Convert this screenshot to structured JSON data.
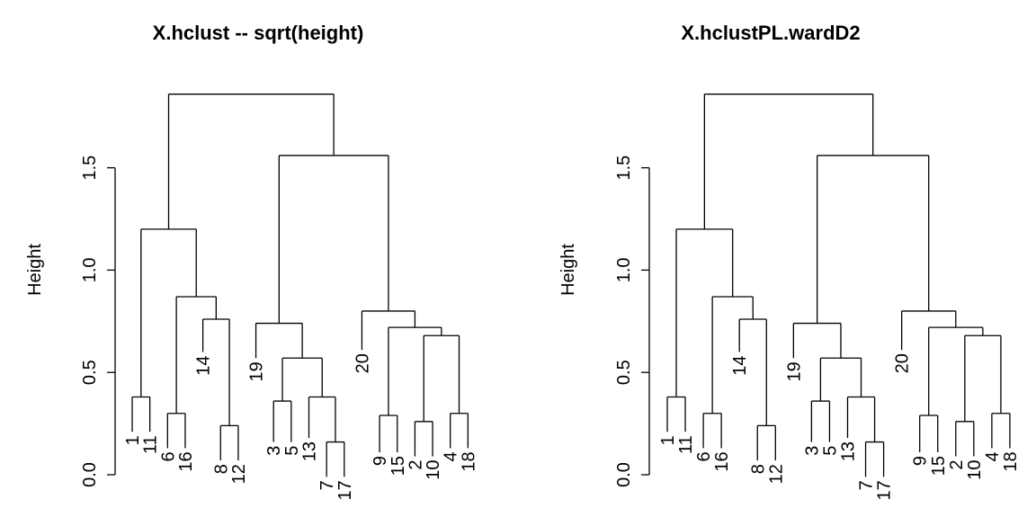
{
  "chart_data": [
    {
      "type": "dendrogram",
      "title": "X.hclust -- sqrt(height)",
      "ylabel": "Height",
      "xlabel": "",
      "ylim": [
        0,
        1.86
      ],
      "yticks": [
        "0.0",
        "0.5",
        "1.0",
        "1.5"
      ],
      "ytick_values": [
        0.0,
        0.5,
        1.0,
        1.5
      ],
      "leaves": [
        {
          "label": "1",
          "y": 0.21
        },
        {
          "label": "11",
          "y": 0.21
        },
        {
          "label": "6",
          "y": 0.13
        },
        {
          "label": "16",
          "y": 0.13
        },
        {
          "label": "14",
          "y": 0.6
        },
        {
          "label": "8",
          "y": 0.07
        },
        {
          "label": "12",
          "y": 0.07
        },
        {
          "label": "19",
          "y": 0.57
        },
        {
          "label": "3",
          "y": 0.16
        },
        {
          "label": "5",
          "y": 0.16
        },
        {
          "label": "13",
          "y": 0.18
        },
        {
          "label": "7",
          "y": -0.01
        },
        {
          "label": "17",
          "y": -0.01
        },
        {
          "label": "20",
          "y": 0.61
        },
        {
          "label": "9",
          "y": 0.11
        },
        {
          "label": "15",
          "y": 0.11
        },
        {
          "label": "2",
          "y": 0.09
        },
        {
          "label": "10",
          "y": 0.09
        },
        {
          "label": "4",
          "y": 0.13
        },
        {
          "label": "18",
          "y": 0.13
        }
      ],
      "merges": [
        {
          "a": "L1",
          "b": "L11",
          "h": 0.38
        },
        {
          "a": "L6",
          "b": "L16",
          "h": 0.3
        },
        {
          "a": "L8",
          "b": "L12",
          "h": 0.24
        },
        {
          "a": "L14",
          "b": "M3",
          "h": 0.76
        },
        {
          "a": "M2",
          "b": "M4",
          "h": 0.87
        },
        {
          "a": "M1",
          "b": "M5",
          "h": 1.2
        },
        {
          "a": "L3",
          "b": "L5",
          "h": 0.36
        },
        {
          "a": "L7",
          "b": "L17",
          "h": 0.16
        },
        {
          "a": "L13",
          "b": "M8",
          "h": 0.38
        },
        {
          "a": "M7",
          "b": "M9",
          "h": 0.57
        },
        {
          "a": "L19",
          "b": "M10",
          "h": 0.74
        },
        {
          "a": "L9",
          "b": "L15",
          "h": 0.29
        },
        {
          "a": "L2",
          "b": "L10",
          "h": 0.26
        },
        {
          "a": "L4",
          "b": "L18",
          "h": 0.3
        },
        {
          "a": "M13",
          "b": "M14",
          "h": 0.68
        },
        {
          "a": "M12",
          "b": "M15",
          "h": 0.72
        },
        {
          "a": "L20",
          "b": "M16",
          "h": 0.8
        },
        {
          "a": "M11",
          "b": "M17",
          "h": 1.56
        },
        {
          "a": "M6",
          "b": "M18",
          "h": 1.86
        }
      ]
    },
    {
      "type": "dendrogram",
      "title": "X.hclustPL.wardD2",
      "ylabel": "Height",
      "xlabel": "",
      "ylim": [
        0,
        1.86
      ],
      "yticks": [
        "0.0",
        "0.5",
        "1.0",
        "1.5"
      ],
      "ytick_values": [
        0.0,
        0.5,
        1.0,
        1.5
      ],
      "leaves": [
        {
          "label": "1",
          "y": 0.21
        },
        {
          "label": "11",
          "y": 0.21
        },
        {
          "label": "6",
          "y": 0.13
        },
        {
          "label": "16",
          "y": 0.13
        },
        {
          "label": "14",
          "y": 0.6
        },
        {
          "label": "8",
          "y": 0.07
        },
        {
          "label": "12",
          "y": 0.07
        },
        {
          "label": "19",
          "y": 0.57
        },
        {
          "label": "3",
          "y": 0.16
        },
        {
          "label": "5",
          "y": 0.16
        },
        {
          "label": "13",
          "y": 0.18
        },
        {
          "label": "7",
          "y": -0.01
        },
        {
          "label": "17",
          "y": -0.01
        },
        {
          "label": "20",
          "y": 0.61
        },
        {
          "label": "9",
          "y": 0.11
        },
        {
          "label": "15",
          "y": 0.11
        },
        {
          "label": "2",
          "y": 0.09
        },
        {
          "label": "10",
          "y": 0.09
        },
        {
          "label": "4",
          "y": 0.13
        },
        {
          "label": "18",
          "y": 0.13
        }
      ],
      "merges": [
        {
          "a": "L1",
          "b": "L11",
          "h": 0.38
        },
        {
          "a": "L6",
          "b": "L16",
          "h": 0.3
        },
        {
          "a": "L8",
          "b": "L12",
          "h": 0.24
        },
        {
          "a": "L14",
          "b": "M3",
          "h": 0.76
        },
        {
          "a": "M2",
          "b": "M4",
          "h": 0.87
        },
        {
          "a": "M1",
          "b": "M5",
          "h": 1.2
        },
        {
          "a": "L3",
          "b": "L5",
          "h": 0.36
        },
        {
          "a": "L7",
          "b": "L17",
          "h": 0.16
        },
        {
          "a": "L13",
          "b": "M8",
          "h": 0.38
        },
        {
          "a": "M7",
          "b": "M9",
          "h": 0.57
        },
        {
          "a": "L19",
          "b": "M10",
          "h": 0.74
        },
        {
          "a": "L9",
          "b": "L15",
          "h": 0.29
        },
        {
          "a": "L2",
          "b": "L10",
          "h": 0.26
        },
        {
          "a": "L4",
          "b": "L18",
          "h": 0.3
        },
        {
          "a": "M13",
          "b": "M14",
          "h": 0.68
        },
        {
          "a": "M12",
          "b": "M15",
          "h": 0.72
        },
        {
          "a": "L20",
          "b": "M16",
          "h": 0.8
        },
        {
          "a": "M11",
          "b": "M17",
          "h": 1.56
        },
        {
          "a": "M6",
          "b": "M18",
          "h": 1.86
        }
      ]
    }
  ]
}
